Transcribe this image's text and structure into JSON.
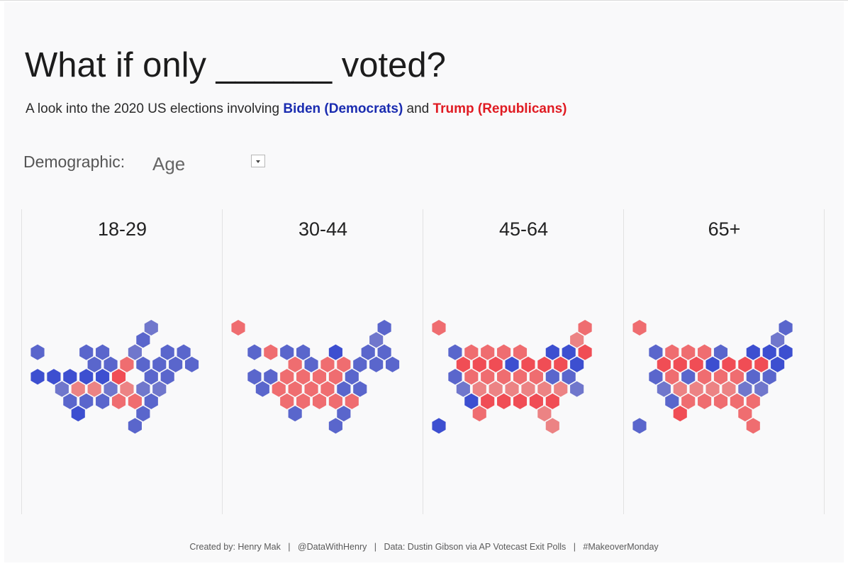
{
  "title": "What if only ______ voted?",
  "subtitle": {
    "prefix": "A look into the 2020 US elections involving ",
    "biden": "Biden (Democrats)",
    "middle": " and ",
    "trump": "Trump (Republicans)"
  },
  "filter": {
    "label": "Demographic:",
    "value": "Age"
  },
  "colors": {
    "dem_strong": "#3d4fd0",
    "dem": "#5a66cc",
    "dem_light": "#7077cc",
    "rep_strong": "#f04d55",
    "rep": "#ef6d70",
    "rep_light": "#ec8384"
  },
  "panels": [
    {
      "label": "18-29",
      "cells": [
        [
          7,
          0,
          "D"
        ],
        [
          6,
          1,
          "D"
        ],
        [
          0,
          2,
          "D"
        ],
        [
          3,
          2,
          "D"
        ],
        [
          4,
          2,
          "D"
        ],
        [
          6,
          2,
          "D"
        ],
        [
          8,
          2,
          "D"
        ],
        [
          9,
          2,
          "D"
        ],
        [
          3,
          3,
          "D"
        ],
        [
          4,
          3,
          "D"
        ],
        [
          5,
          3,
          "R"
        ],
        [
          6,
          3,
          "D"
        ],
        [
          7,
          3,
          "D"
        ],
        [
          8,
          3,
          "D"
        ],
        [
          9,
          3,
          "D"
        ],
        [
          0,
          4,
          "D"
        ],
        [
          1,
          4,
          "D"
        ],
        [
          2,
          4,
          "D"
        ],
        [
          3,
          4,
          "D"
        ],
        [
          4,
          4,
          "D"
        ],
        [
          5,
          4,
          "R"
        ],
        [
          7,
          4,
          "D"
        ],
        [
          8,
          4,
          "D"
        ],
        [
          1,
          5,
          "D"
        ],
        [
          2,
          5,
          "R"
        ],
        [
          3,
          5,
          "R"
        ],
        [
          4,
          5,
          "D"
        ],
        [
          5,
          5,
          "R"
        ],
        [
          6,
          5,
          "D"
        ],
        [
          7,
          5,
          "D"
        ],
        [
          2,
          6,
          "D"
        ],
        [
          3,
          6,
          "D"
        ],
        [
          4,
          6,
          "D"
        ],
        [
          5,
          6,
          "R"
        ],
        [
          6,
          6,
          "R"
        ],
        [
          7,
          6,
          "D"
        ],
        [
          2,
          7,
          "D"
        ],
        [
          6,
          7,
          "D"
        ],
        [
          6,
          8,
          "D"
        ]
      ]
    },
    {
      "label": "30-44",
      "cells": [
        [
          0,
          0,
          "R"
        ],
        [
          9,
          0,
          "D"
        ],
        [
          8,
          1,
          "D"
        ],
        [
          1,
          2,
          "D"
        ],
        [
          2,
          2,
          "R"
        ],
        [
          3,
          2,
          "D"
        ],
        [
          4,
          2,
          "D"
        ],
        [
          6,
          2,
          "D"
        ],
        [
          8,
          2,
          "D"
        ],
        [
          9,
          2,
          "D"
        ],
        [
          3,
          3,
          "R"
        ],
        [
          4,
          3,
          "D"
        ],
        [
          5,
          3,
          "R"
        ],
        [
          6,
          3,
          "R"
        ],
        [
          7,
          3,
          "D"
        ],
        [
          8,
          3,
          "D"
        ],
        [
          9,
          3,
          "D"
        ],
        [
          1,
          4,
          "D"
        ],
        [
          2,
          4,
          "D"
        ],
        [
          3,
          4,
          "R"
        ],
        [
          4,
          4,
          "R"
        ],
        [
          5,
          4,
          "R"
        ],
        [
          6,
          4,
          "R"
        ],
        [
          7,
          4,
          "D"
        ],
        [
          1,
          5,
          "D"
        ],
        [
          2,
          5,
          "R"
        ],
        [
          3,
          5,
          "R"
        ],
        [
          4,
          5,
          "R"
        ],
        [
          5,
          5,
          "R"
        ],
        [
          6,
          5,
          "D"
        ],
        [
          7,
          5,
          "D"
        ],
        [
          3,
          6,
          "R"
        ],
        [
          4,
          6,
          "R"
        ],
        [
          5,
          6,
          "R"
        ],
        [
          6,
          6,
          "R"
        ],
        [
          7,
          6,
          "R"
        ],
        [
          3,
          7,
          "D"
        ],
        [
          6,
          7,
          "D"
        ],
        [
          6,
          8,
          "D"
        ]
      ]
    },
    {
      "label": "45-64",
      "cells": [
        [
          0,
          0,
          "R"
        ],
        [
          9,
          0,
          "R"
        ],
        [
          8,
          1,
          "R"
        ],
        [
          1,
          2,
          "D"
        ],
        [
          2,
          2,
          "R"
        ],
        [
          3,
          2,
          "R"
        ],
        [
          4,
          2,
          "R"
        ],
        [
          5,
          2,
          "R"
        ],
        [
          7,
          2,
          "D"
        ],
        [
          8,
          2,
          "D"
        ],
        [
          9,
          2,
          "R"
        ],
        [
          1,
          3,
          "R"
        ],
        [
          2,
          3,
          "R"
        ],
        [
          3,
          3,
          "R"
        ],
        [
          4,
          3,
          "D"
        ],
        [
          5,
          3,
          "R"
        ],
        [
          6,
          3,
          "R"
        ],
        [
          7,
          3,
          "R"
        ],
        [
          8,
          3,
          "D"
        ],
        [
          1,
          4,
          "D"
        ],
        [
          2,
          4,
          "R"
        ],
        [
          3,
          4,
          "R"
        ],
        [
          4,
          4,
          "R"
        ],
        [
          5,
          4,
          "R"
        ],
        [
          6,
          4,
          "R"
        ],
        [
          7,
          4,
          "D"
        ],
        [
          8,
          4,
          "D"
        ],
        [
          1,
          5,
          "D"
        ],
        [
          2,
          5,
          "R"
        ],
        [
          3,
          5,
          "R"
        ],
        [
          4,
          5,
          "R"
        ],
        [
          5,
          5,
          "R"
        ],
        [
          6,
          5,
          "R"
        ],
        [
          7,
          5,
          "R"
        ],
        [
          8,
          5,
          "D"
        ],
        [
          2,
          6,
          "D"
        ],
        [
          3,
          6,
          "R"
        ],
        [
          4,
          6,
          "R"
        ],
        [
          5,
          6,
          "R"
        ],
        [
          6,
          6,
          "R"
        ],
        [
          7,
          6,
          "R"
        ],
        [
          2,
          7,
          "R"
        ],
        [
          6,
          7,
          "R"
        ],
        [
          0,
          8,
          "D"
        ],
        [
          7,
          8,
          "R"
        ]
      ]
    },
    {
      "label": "65+",
      "cells": [
        [
          0,
          0,
          "R"
        ],
        [
          9,
          0,
          "D"
        ],
        [
          8,
          1,
          "D"
        ],
        [
          1,
          2,
          "D"
        ],
        [
          2,
          2,
          "R"
        ],
        [
          3,
          2,
          "R"
        ],
        [
          4,
          2,
          "R"
        ],
        [
          5,
          2,
          "D"
        ],
        [
          7,
          2,
          "D"
        ],
        [
          8,
          2,
          "D"
        ],
        [
          9,
          2,
          "D"
        ],
        [
          1,
          3,
          "R"
        ],
        [
          2,
          3,
          "R"
        ],
        [
          3,
          3,
          "R"
        ],
        [
          4,
          3,
          "D"
        ],
        [
          5,
          3,
          "R"
        ],
        [
          6,
          3,
          "R"
        ],
        [
          7,
          3,
          "R"
        ],
        [
          8,
          3,
          "D"
        ],
        [
          1,
          4,
          "D"
        ],
        [
          2,
          4,
          "R"
        ],
        [
          3,
          4,
          "D"
        ],
        [
          4,
          4,
          "R"
        ],
        [
          5,
          4,
          "R"
        ],
        [
          6,
          4,
          "R"
        ],
        [
          7,
          4,
          "D"
        ],
        [
          8,
          4,
          "D"
        ],
        [
          1,
          5,
          "D"
        ],
        [
          2,
          5,
          "R"
        ],
        [
          3,
          5,
          "R"
        ],
        [
          4,
          5,
          "R"
        ],
        [
          5,
          5,
          "R"
        ],
        [
          6,
          5,
          "D"
        ],
        [
          7,
          5,
          "D"
        ],
        [
          2,
          6,
          "D"
        ],
        [
          3,
          6,
          "R"
        ],
        [
          4,
          6,
          "R"
        ],
        [
          5,
          6,
          "R"
        ],
        [
          6,
          6,
          "R"
        ],
        [
          7,
          6,
          "R"
        ],
        [
          2,
          7,
          "R"
        ],
        [
          6,
          7,
          "R"
        ],
        [
          0,
          8,
          "D"
        ],
        [
          7,
          8,
          "R"
        ]
      ]
    }
  ],
  "footer": "Created by: Henry Mak   |   @DataWithHenry   |   Data: Dustin Gibson via AP Votecast Exit Polls   |   #MakeoverMonday"
}
